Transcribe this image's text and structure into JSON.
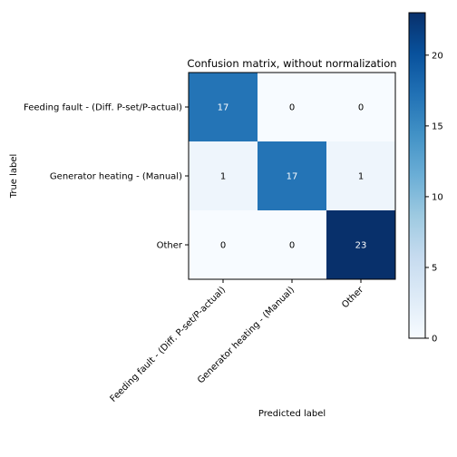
{
  "chart_data": {
    "type": "heatmap",
    "title": "Confusion matrix, without normalization",
    "xlabel": "Predicted label",
    "ylabel": "True label",
    "x_categories": [
      "Feeding fault - (Diff. P-set/P-actual)",
      "Generator heating - (Manual)",
      "Other"
    ],
    "y_categories": [
      "Feeding fault - (Diff. P-set/P-actual)",
      "Generator heating - (Manual)",
      "Other"
    ],
    "values": [
      [
        17,
        0,
        0
      ],
      [
        1,
        17,
        1
      ],
      [
        0,
        0,
        23
      ]
    ],
    "colormap": "Blues",
    "vmin": 0,
    "vmax": 23,
    "colorbar_ticks": [
      0,
      5,
      10,
      15,
      20
    ],
    "grid": false
  }
}
